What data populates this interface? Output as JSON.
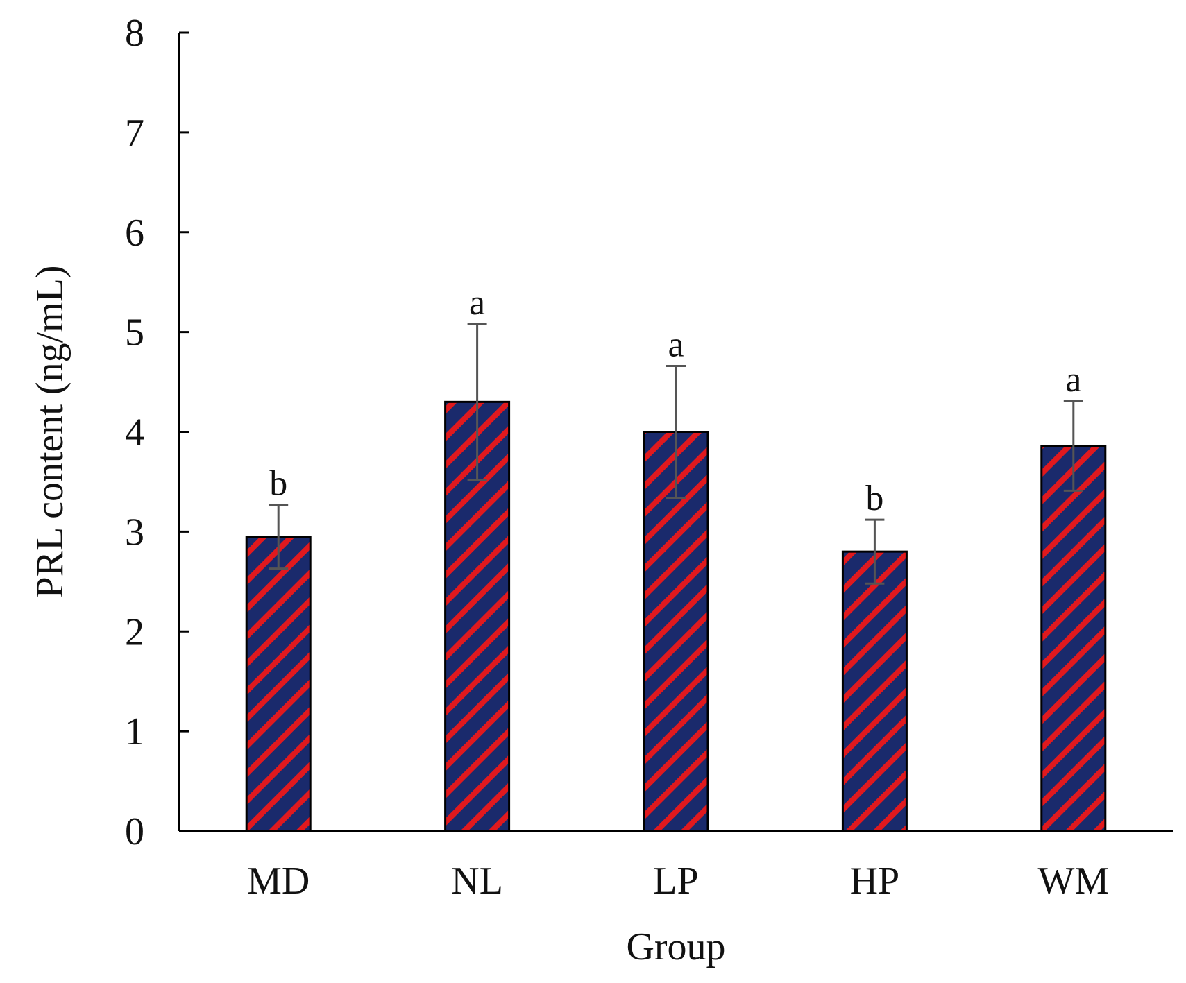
{
  "chart_data": {
    "type": "bar",
    "title": "",
    "xlabel": "Group",
    "ylabel": "PRL content (ng/mL)",
    "ylim": [
      0,
      8
    ],
    "yticks": [
      0,
      1,
      2,
      3,
      4,
      5,
      6,
      7,
      8
    ],
    "grid": false,
    "legend": "none",
    "categories": [
      "MD",
      "NL",
      "LP",
      "HP",
      "WM"
    ],
    "values": [
      2.95,
      4.3,
      4.0,
      2.8,
      3.86
    ],
    "errors": [
      0.32,
      0.78,
      0.66,
      0.32,
      0.45
    ],
    "significance": [
      "b",
      "a",
      "a",
      "b",
      "a"
    ],
    "colors": {
      "bar_fill": "#1a2a6c",
      "bar_stripe": "#e0191e",
      "bar_outline": "#000000",
      "error_bar": "#555555",
      "axis": "#000000"
    }
  }
}
